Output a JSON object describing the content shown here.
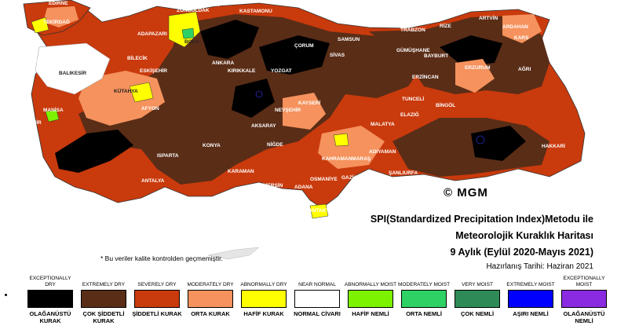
{
  "title": {
    "line1": "SPI(Standardized Precipitation Index)Metodu ile",
    "line2": "Meteorolojik Kuraklık Haritası",
    "line3": "9 Aylık (Eylül 2020-Mayıs 2021)",
    "date": "Hazırlanış Tarihi: Haziran 2021"
  },
  "note": "* Bu veriler kalite kontrolden geçmemiştir.",
  "copyright": "© MGM",
  "cities": [
    "EDİRNE",
    "TEKİRDAĞ",
    "ÇANAKKALE",
    "BALIKESİR",
    "MANİSA",
    "İZMİR",
    "BARTIN",
    "ZONGULDAK",
    "KASTAMONU",
    "ADAPAZARI",
    "BOLU",
    "BİLECİK",
    "ESKİŞEHİR",
    "KÜTAHYA",
    "AFYON",
    "ANKARA",
    "KIRIKKALE",
    "YOZGAT",
    "SİVAS",
    "AKSARAY",
    "NEVŞEHİR",
    "KAYSERİ",
    "NİĞDE",
    "KONYA",
    "ISPARTA",
    "KARAMAN",
    "ANTALYA",
    "MERSİN",
    "ADANA",
    "OSMANİYE",
    "KAHRAMANMARAŞ",
    "ADIYAMAN",
    "GAZİANTEP",
    "ŞANLIURFA",
    "MALATYA",
    "ELAZIĞ",
    "TUNCELİ",
    "BİNGÖL",
    "ERZİNCAN",
    "GÜMÜŞHANE",
    "BAYBURT",
    "TRABZON",
    "RİZE",
    "ARTVİN",
    "ARDAHAN",
    "KARS",
    "ERZURUM",
    "AĞRI",
    "HAKKARİ",
    "ANTAKYA",
    "SAMSUN",
    "ÇORUM"
  ],
  "legend": [
    {
      "en": "EXCEPTIONALLY DRY",
      "tr": "OLAĞANÜSTÜ KURAK",
      "color": "#000000"
    },
    {
      "en": "EXTREMELY DRY",
      "tr": "ÇOK ŞİDDETLİ KURAK",
      "color": "#5a2d17"
    },
    {
      "en": "SEVERELY DRY",
      "tr": "ŞİDDETLİ KURAK",
      "color": "#c93a0c"
    },
    {
      "en": "MODERATELY DRY",
      "tr": "ORTA KURAK",
      "color": "#f5925d"
    },
    {
      "en": "ABNORMALLY DRY",
      "tr": "HAFİF KURAK",
      "color": "#ffff00"
    },
    {
      "en": "NEAR NORMAL",
      "tr": "NORMAL CİVARI",
      "color": "#ffffff"
    },
    {
      "en": "ABNORMALLY MOIST",
      "tr": "HAFİF NEMLİ",
      "color": "#7cf200"
    },
    {
      "en": "MODERATELY MOIST",
      "tr": "ORTA NEMLİ",
      "color": "#2ed164"
    },
    {
      "en": "VERY MOIST",
      "tr": "ÇOK NEMLİ",
      "color": "#2e8b57"
    },
    {
      "en": "EXTREMELY MOIST",
      "tr": "AŞIRI NEMLİ",
      "color": "#0000ff"
    },
    {
      "en": "EXCEPTIONALLY MOIST",
      "tr": "OLAĞANÜSTÜ NEMLİ",
      "color": "#8a2be2"
    }
  ]
}
